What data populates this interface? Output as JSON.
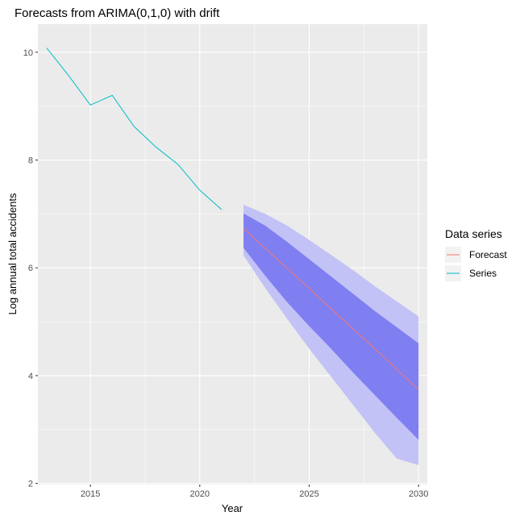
{
  "chart_data": {
    "type": "line",
    "title": "Forecasts from ARIMA(0,1,0) with drift",
    "xlabel": "Year",
    "ylabel": "Log annual total accidents",
    "xlim": [
      2012.6,
      2030.4
    ],
    "ylim": [
      1.98,
      10.52
    ],
    "x_ticks": [
      2015,
      2020,
      2025,
      2030
    ],
    "y_ticks": [
      2,
      4,
      6,
      8,
      10
    ],
    "x_tick_labels": [
      "2015",
      "2020",
      "2025",
      "2030"
    ],
    "y_tick_labels": [
      "2",
      "4",
      "6",
      "8",
      "10"
    ],
    "grid": true,
    "legend": {
      "title": "Data series",
      "position": "right",
      "entries": [
        "Forecast",
        "Series"
      ]
    },
    "colors": {
      "panel": "#ebebeb",
      "grid": "#ffffff",
      "series": "#00bfc4",
      "forecast": "#f8766d",
      "band80": "#7f7ff2",
      "band95": "#c2c2f6"
    },
    "series": [
      {
        "name": "Series",
        "x": [
          2013,
          2014,
          2015,
          2016,
          2017,
          2018,
          2019,
          2020,
          2021
        ],
        "values": [
          10.08,
          9.57,
          9.02,
          9.2,
          8.62,
          8.24,
          7.92,
          7.44,
          7.08
        ]
      },
      {
        "name": "Forecast",
        "x": [
          2022,
          2023,
          2024,
          2025,
          2026,
          2027,
          2028,
          2029,
          2030
        ],
        "values": [
          6.73,
          6.36,
          5.99,
          5.62,
          5.24,
          4.87,
          4.5,
          4.12,
          3.74
        ]
      }
    ],
    "intervals": {
      "x": [
        2022,
        2023,
        2024,
        2025,
        2026,
        2027,
        2028,
        2029,
        2030
      ],
      "lo80": [
        6.37,
        5.85,
        5.36,
        4.92,
        4.5,
        4.06,
        3.64,
        3.22,
        2.81
      ],
      "hi80": [
        7.01,
        6.78,
        6.48,
        6.16,
        5.84,
        5.52,
        5.2,
        4.9,
        4.6
      ],
      "lo95": [
        6.23,
        5.62,
        5.05,
        4.5,
        3.98,
        3.46,
        2.94,
        2.46,
        2.34
      ],
      "hi95": [
        7.17,
        7.0,
        6.78,
        6.52,
        6.24,
        5.96,
        5.66,
        5.38,
        5.1
      ]
    }
  }
}
